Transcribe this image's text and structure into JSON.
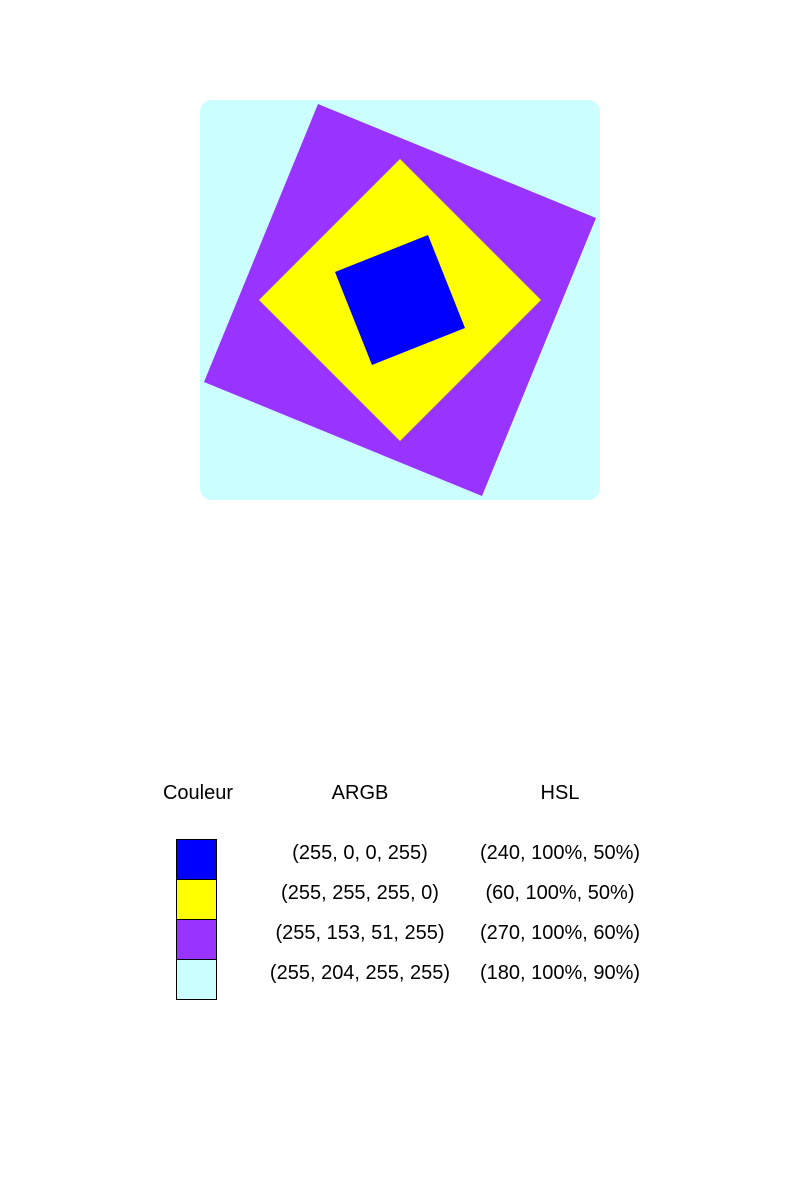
{
  "legend": {
    "headers": {
      "color": "Couleur",
      "argb": "ARGB",
      "hsl": "HSL"
    },
    "rows": [
      {
        "swatch": "#0000ff",
        "argb": "(255, 0, 0, 255)",
        "hsl": "(240, 100%, 50%)"
      },
      {
        "swatch": "#ffff00",
        "argb": "(255, 255, 255, 0)",
        "hsl": "(60, 100%, 50%)"
      },
      {
        "swatch": "#9933ff",
        "argb": "(255, 153, 51, 255)",
        "hsl": "(270, 100%, 60%)"
      },
      {
        "swatch": "#ccffff",
        "argb": "(255, 204, 255, 255)",
        "hsl": "(180, 100%, 90%)"
      }
    ]
  },
  "shapes": {
    "background_color": "#ccffff",
    "outer_square_color": "#9933ff",
    "middle_diamond_color": "#ffff00",
    "inner_square_color": "#0000ff"
  }
}
